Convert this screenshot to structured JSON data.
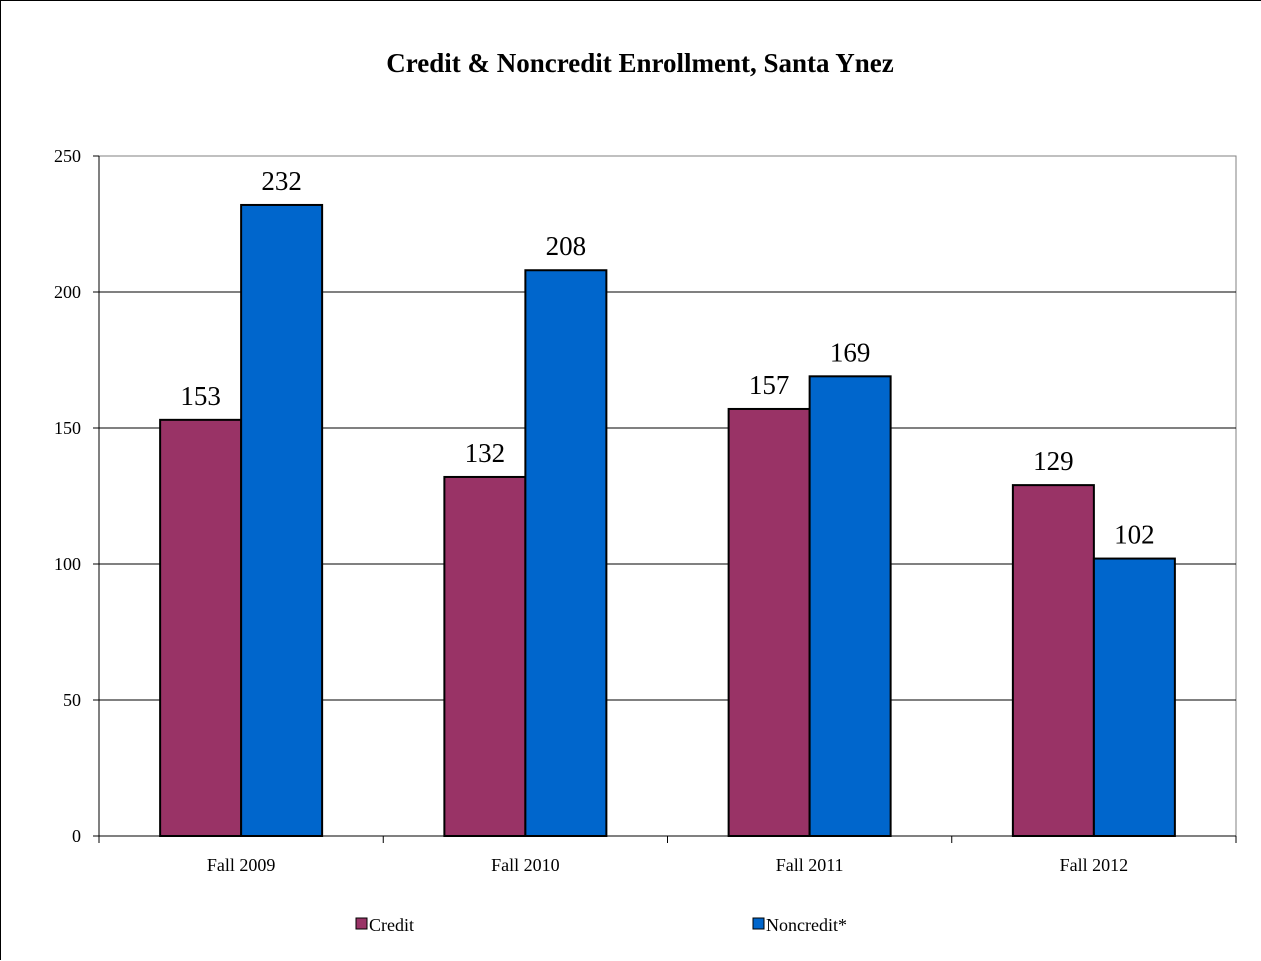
{
  "chart_data": {
    "type": "bar",
    "title": "Credit & Noncredit Enrollment, Santa Ynez",
    "xlabel": "",
    "ylabel": "",
    "categories": [
      "Fall 2009",
      "Fall 2010",
      "Fall 2011",
      "Fall 2012"
    ],
    "series": [
      {
        "name": "Credit",
        "values": [
          153,
          132,
          157,
          129
        ],
        "color": "#993366"
      },
      {
        "name": "Noncredit*",
        "values": [
          232,
          208,
          169,
          102
        ],
        "color": "#0066CC"
      }
    ],
    "ylim": [
      0,
      250
    ],
    "yticks": [
      0,
      50,
      100,
      150,
      200,
      250
    ],
    "grid": true,
    "data_labels": true,
    "legend_position": "bottom"
  }
}
